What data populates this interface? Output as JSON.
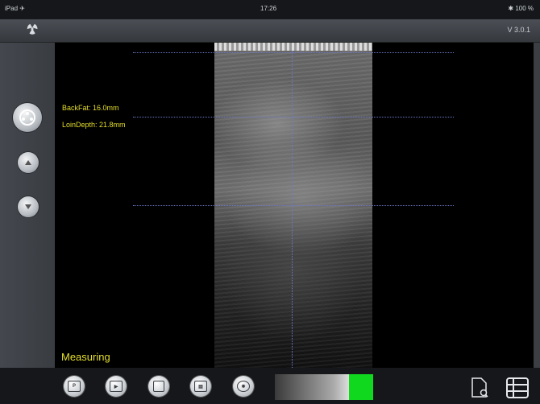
{
  "status_bar": {
    "carrier": "iPad ✈",
    "time": "17:26",
    "battery": "✱ 100 %"
  },
  "nav": {
    "logo_icon": "radiation-icon",
    "version": "V 3.0.1"
  },
  "sidebar": {
    "buttons": [
      {
        "name": "probe-icon"
      },
      {
        "name": "up-arrow-icon"
      },
      {
        "name": "down-arrow-icon"
      }
    ]
  },
  "overlay": {
    "backfat": "BackFat: 16.0mm",
    "loindepth": "LoinDepth: 21.8mm",
    "status": "Measuring"
  },
  "toolbar": {
    "buttons": [
      {
        "name": "photo-icon",
        "glyph": "P"
      },
      {
        "name": "video-icon",
        "glyph": "▶"
      },
      {
        "name": "save-icon",
        "glyph": ""
      },
      {
        "name": "report-icon",
        "glyph": "▤"
      },
      {
        "name": "settings-icon",
        "glyph": "✹"
      }
    ],
    "gain_level": 0.75,
    "gain_color": "#10d81e"
  }
}
